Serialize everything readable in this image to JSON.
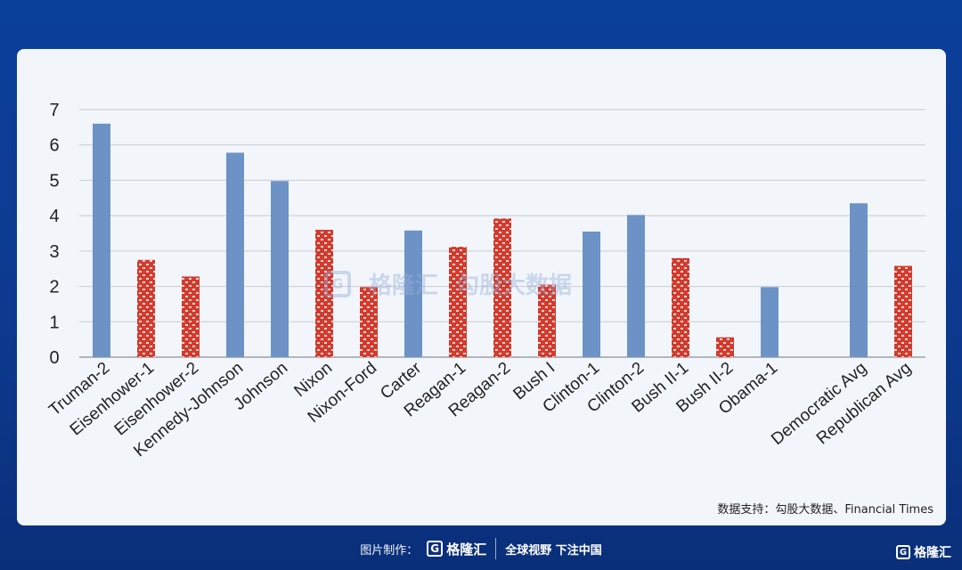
{
  "chart_data": {
    "type": "bar",
    "categories": [
      "Truman-2",
      "Eisenhower-1",
      "Eisenhower-2",
      "Kennedy-Johnson",
      "Johnson",
      "Nixon",
      "Nixon-Ford",
      "Carter",
      "Reagan-1",
      "Reagan-2",
      "Bush I",
      "Clinton-1",
      "Clinton-2",
      "Bush II-1",
      "Bush II-2",
      "Obama-1",
      "",
      "Democratic Avg",
      "Republican Avg"
    ],
    "values": [
      6.6,
      2.75,
      2.28,
      5.78,
      4.98,
      3.6,
      1.98,
      3.58,
      3.12,
      3.92,
      2.05,
      3.55,
      4.02,
      2.8,
      0.56,
      1.98,
      null,
      4.35,
      2.58
    ],
    "party": [
      "D",
      "R",
      "R",
      "D",
      "D",
      "R",
      "R",
      "D",
      "R",
      "R",
      "R",
      "D",
      "D",
      "R",
      "R",
      "D",
      "",
      "D",
      "R"
    ],
    "title": "",
    "xlabel": "",
    "ylabel": "",
    "ylim": [
      0,
      7
    ],
    "yticks": [
      0,
      1,
      2,
      3,
      4,
      5,
      6,
      7
    ],
    "grid": true,
    "colors": {
      "democrat": "#6d93c6",
      "republican": "#d23b2e",
      "pattern_light": "#f4d4cf",
      "grid": "#c8ccd2",
      "text": "#222222"
    }
  },
  "source": "数据支持：勾股大数据、Financial Times",
  "watermark": {
    "brand": "格隆汇",
    "brand2": "勾股大数据"
  },
  "footer": {
    "made_by": "图片制作：",
    "logo": "格隆汇",
    "slogan": "全球视野 下注中国"
  },
  "corner_logo": "格隆汇"
}
